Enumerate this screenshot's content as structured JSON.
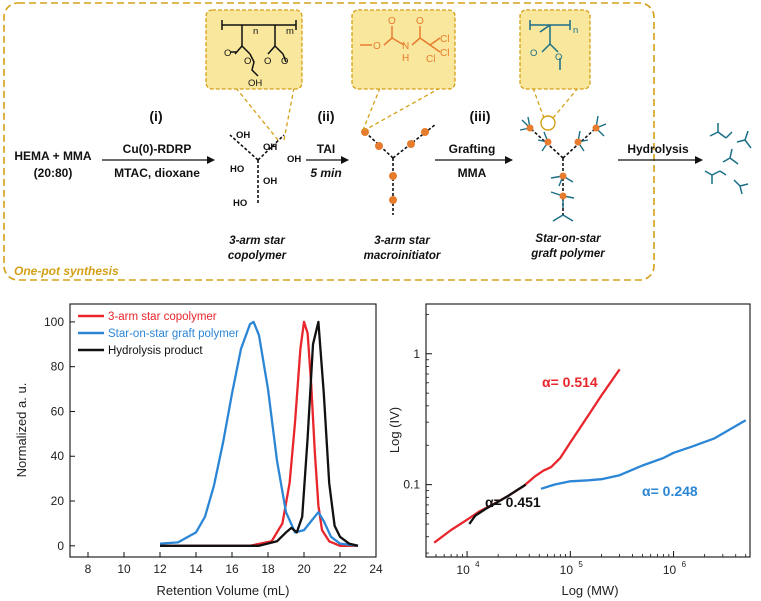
{
  "colors": {
    "frame": "#D4A017",
    "callout_fill": "#F8E79C",
    "orange": "#E87C2E",
    "teal": "#1A6F86",
    "red": "#E8262B",
    "blue": "#2C86D6",
    "black": "#111111"
  },
  "scheme": {
    "reactants_line1": "HEMA + MMA",
    "reactants_line2": "(20:80)",
    "step_i": {
      "numeral": "(i)",
      "above": "Cu(0)-RDRP",
      "below": "MTAC, dioxane"
    },
    "step_ii": {
      "numeral": "(ii)",
      "above": "TAI",
      "below": "5 min"
    },
    "step_iii": {
      "numeral": "(iii)",
      "above": "Grafting",
      "below": "MMA"
    },
    "step_iv": {
      "above": "Hydrolysis"
    },
    "product1": {
      "line1": "3-arm star",
      "line2": "copolymer"
    },
    "product2": {
      "line1": "3-arm star",
      "line2": "macroinitiator"
    },
    "product3": {
      "line1": "Star-on-star",
      "line2": "graft polymer"
    },
    "frame_label": "One-pot synthesis",
    "oh_label": "OH",
    "ho_label": "HO",
    "callout1": {
      "n": "n",
      "m": "m",
      "o": "O",
      "oh": "OH"
    },
    "callout2": {
      "o": "O",
      "nh": "N",
      "h": "H",
      "cl": "Cl"
    },
    "callout3": {
      "n": "n",
      "o": "O"
    }
  },
  "chart_data": [
    {
      "type": "line",
      "xlabel": "Retention Volume (mL)",
      "ylabel": "Normalized a. u.",
      "xlim": [
        7,
        24
      ],
      "ylim": [
        -5,
        108
      ],
      "xticks": [
        8,
        10,
        12,
        14,
        16,
        18,
        20,
        22,
        24
      ],
      "yticks": [
        0,
        20,
        40,
        60,
        80,
        100
      ],
      "legend_position": "top-left",
      "series": [
        {
          "name": "3-arm star copolymer",
          "color": "#E8262B",
          "x": [
            12,
            17,
            18.2,
            18.8,
            19.2,
            19.5,
            19.8,
            20.0,
            20.2,
            20.4,
            20.6,
            20.8,
            21.0,
            21.4,
            22,
            23
          ],
          "y": [
            0,
            0,
            2,
            10,
            28,
            55,
            88,
            100,
            95,
            72,
            42,
            18,
            7,
            2,
            0,
            0
          ]
        },
        {
          "name": "Star-on-star graft polymer",
          "color": "#2C86D6",
          "x": [
            12,
            13,
            14,
            14.5,
            15,
            15.5,
            16,
            16.5,
            17.0,
            17.2,
            17.5,
            18,
            18.5,
            19,
            19.5,
            20,
            20.5,
            20.8,
            21.1,
            21.5,
            22,
            23
          ],
          "y": [
            1,
            1.5,
            6,
            13,
            27,
            46,
            68,
            88,
            99,
            100,
            94,
            70,
            38,
            15,
            6,
            7,
            12,
            15,
            11,
            4,
            1,
            0
          ]
        },
        {
          "name": "Hydrolysis product",
          "color": "#111111",
          "x": [
            12,
            17.5,
            18.5,
            19.0,
            19.3,
            19.6,
            19.9,
            20.2,
            20.5,
            20.8,
            21.1,
            21.4,
            21.7,
            22,
            22.5,
            23
          ],
          "y": [
            0,
            0,
            2,
            6,
            8,
            6,
            13,
            48,
            90,
            100,
            68,
            28,
            9,
            4,
            1,
            0
          ]
        }
      ]
    },
    {
      "type": "line",
      "xlabel": "Log (MW)",
      "ylabel": "Log (IV)",
      "xscale": "log",
      "yscale": "log",
      "xlim": [
        4000,
        5500000
      ],
      "ylim": [
        0.028,
        2.4
      ],
      "xtick_labels": [
        "10^4",
        "10^5",
        "10^6"
      ],
      "ytick_labels": [
        "0.1",
        "1"
      ],
      "series": [
        {
          "label": "α= 0.514",
          "color": "#E8262B",
          "x": [
            4800,
            7000,
            10000,
            13000,
            18000,
            25000,
            35000,
            45000,
            55000,
            65000,
            80000,
            100000,
            150000,
            200000,
            300000
          ],
          "y": [
            0.036,
            0.045,
            0.054,
            0.062,
            0.071,
            0.082,
            0.097,
            0.115,
            0.128,
            0.136,
            0.16,
            0.21,
            0.34,
            0.48,
            0.76
          ]
        },
        {
          "label": "α= 0.248",
          "color": "#2C86D6",
          "x": [
            52000,
            70000,
            100000,
            150000,
            200000,
            300000,
            500000,
            800000,
            1000000,
            1500000,
            2500000,
            5000000
          ],
          "y": [
            0.093,
            0.1,
            0.106,
            0.108,
            0.11,
            0.118,
            0.14,
            0.16,
            0.175,
            0.195,
            0.226,
            0.31
          ]
        },
        {
          "label": "α= 0.451",
          "color": "#111111",
          "x": [
            10500,
            12000,
            15000,
            20000,
            25000,
            30000,
            37000
          ],
          "y": [
            0.05,
            0.058,
            0.065,
            0.074,
            0.082,
            0.09,
            0.1
          ]
        }
      ]
    }
  ]
}
